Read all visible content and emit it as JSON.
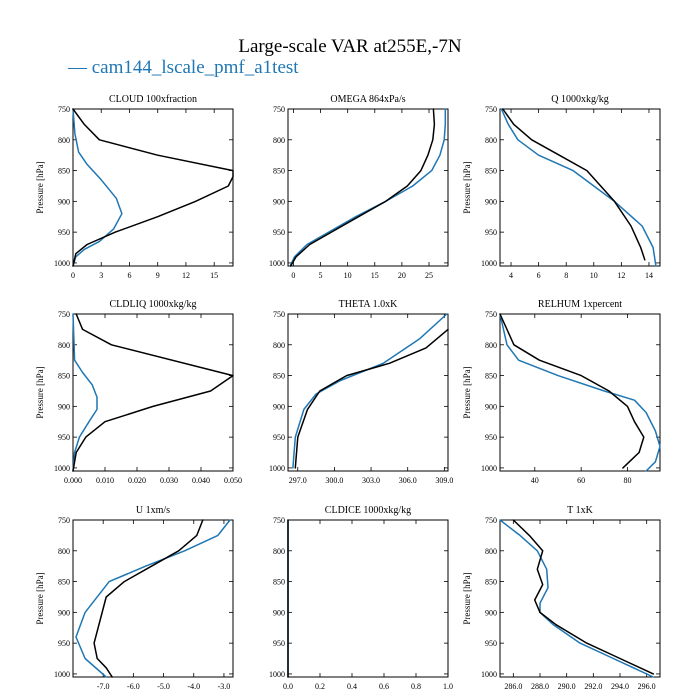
{
  "title": "Large-scale VAR at255E,-7N",
  "legend": [
    {
      "label": "cam144_lscale_pmf_a1test",
      "color": "#1f77b4",
      "marker": "—"
    }
  ],
  "colors": {
    "blue": "#1f77b4",
    "black": "#000000"
  },
  "chart_data": [
    {
      "type": "line",
      "title": "CLOUD  100xfraction",
      "ylabel": "Pressure [hPa]",
      "xlim": [
        0,
        17
      ],
      "ylim": [
        1005,
        750
      ],
      "xticks": [
        0,
        3,
        6,
        9,
        12,
        15
      ],
      "xticklabels": [
        "0",
        "3",
        "6",
        "9",
        "12",
        "15"
      ],
      "yticks": [
        750,
        800,
        850,
        900,
        950,
        1000
      ],
      "yticklabels": [
        "750",
        "800",
        "850",
        "900",
        "950",
        "1000"
      ],
      "series": [
        {
          "color": "#000000",
          "x": [
            0,
            1.2,
            2.8,
            9.0,
            17.0,
            17.0,
            16.5,
            13.0,
            9.0,
            4.5,
            1.5,
            0.3,
            0
          ],
          "y": [
            750,
            775,
            800,
            825,
            850,
            860,
            875,
            900,
            925,
            950,
            970,
            985,
            1005
          ]
        },
        {
          "color": "#1f77b4",
          "x": [
            0,
            0.2,
            0.6,
            1.5,
            3.0,
            4.6,
            5.2,
            4.3,
            2.8,
            1.2,
            0.3,
            0
          ],
          "y": [
            750,
            790,
            820,
            840,
            865,
            895,
            920,
            945,
            965,
            978,
            990,
            1005
          ]
        }
      ]
    },
    {
      "type": "line",
      "title": "OMEGA  864xPa/s",
      "ylabel": "",
      "xlim": [
        -1,
        28.5
      ],
      "ylim": [
        1005,
        750
      ],
      "xticks": [
        0,
        5,
        10,
        15,
        20,
        25
      ],
      "xticklabels": [
        "0",
        "5",
        "10",
        "15",
        "20",
        "25"
      ],
      "yticks": [
        750,
        800,
        850,
        900,
        950,
        1000
      ],
      "yticklabels": [
        "750",
        "800",
        "850",
        "900",
        "950",
        "1000"
      ],
      "series": [
        {
          "color": "#000000",
          "x": [
            25.8,
            26.0,
            25.7,
            24.8,
            23.5,
            21.0,
            17.0,
            12.0,
            7.0,
            3.0,
            0.5,
            -0.5
          ],
          "y": [
            750,
            775,
            800,
            825,
            850,
            875,
            900,
            925,
            950,
            970,
            990,
            1005
          ]
        },
        {
          "color": "#1f77b4",
          "x": [
            28.0,
            28.0,
            27.8,
            27.0,
            25.5,
            22.0,
            17.0,
            11.5,
            6.5,
            2.5,
            0.2,
            -0.6
          ],
          "y": [
            750,
            775,
            800,
            825,
            850,
            875,
            900,
            925,
            950,
            970,
            990,
            1005
          ]
        }
      ]
    },
    {
      "type": "line",
      "title": "Q  1000xkg/kg",
      "ylabel": "Pressure [hPa]",
      "xlim": [
        3.2,
        14.8
      ],
      "ylim": [
        1005,
        750
      ],
      "xticks": [
        4,
        6,
        8,
        10,
        12,
        14
      ],
      "xticklabels": [
        "4",
        "6",
        "8",
        "10",
        "12",
        "14"
      ],
      "yticks": [
        750,
        800,
        850,
        900,
        950,
        1000
      ],
      "yticklabels": [
        "750",
        "800",
        "850",
        "900",
        "950",
        "1000"
      ],
      "series": [
        {
          "color": "#000000",
          "x": [
            3.4,
            4.2,
            5.5,
            7.5,
            9.5,
            11.5,
            12.7,
            13.4,
            13.7
          ],
          "y": [
            750,
            775,
            800,
            825,
            850,
            900,
            940,
            975,
            995
          ]
        },
        {
          "color": "#1f77b4",
          "x": [
            3.3,
            3.8,
            4.5,
            6.0,
            8.5,
            11.5,
            13.5,
            14.3,
            14.5
          ],
          "y": [
            750,
            775,
            800,
            825,
            850,
            900,
            940,
            975,
            1005
          ]
        }
      ]
    },
    {
      "type": "line",
      "title": "CLDLIQ  1000xkg/kg",
      "ylabel": "Pressure [hPa]",
      "xlim": [
        0,
        0.05
      ],
      "ylim": [
        1005,
        750
      ],
      "xticks": [
        0.0,
        0.01,
        0.02,
        0.03,
        0.04,
        0.05
      ],
      "xticklabels": [
        "0.000",
        "0.010",
        "0.020",
        "0.030",
        "0.040",
        "0.050"
      ],
      "yticks": [
        750,
        800,
        850,
        900,
        950,
        1000
      ],
      "yticklabels": [
        "750",
        "800",
        "850",
        "900",
        "950",
        "1000"
      ],
      "series": [
        {
          "color": "#000000",
          "x": [
            0.001,
            0.003,
            0.012,
            0.05,
            0.043,
            0.025,
            0.01,
            0.004,
            0.001,
            0
          ],
          "y": [
            750,
            775,
            800,
            850,
            875,
            900,
            925,
            950,
            975,
            1005
          ]
        },
        {
          "color": "#1f77b4",
          "x": [
            0,
            0.0005,
            0.003,
            0.006,
            0.0075,
            0.0075,
            0.005,
            0.002,
            0.0005,
            0
          ],
          "y": [
            750,
            825,
            845,
            865,
            885,
            905,
            925,
            950,
            975,
            1005
          ]
        }
      ]
    },
    {
      "type": "line",
      "title": "THETA  1.0xK",
      "ylabel": "",
      "xlim": [
        296.2,
        309.3
      ],
      "ylim": [
        1005,
        750
      ],
      "xticks": [
        297.0,
        300.0,
        303.0,
        306.0,
        309.0
      ],
      "xticklabels": [
        "297.0",
        "300.0",
        "303.0",
        "306.0",
        "309.0"
      ],
      "yticks": [
        750,
        800,
        850,
        900,
        950,
        1000
      ],
      "yticklabels": [
        "750",
        "800",
        "850",
        "900",
        "950",
        "1000"
      ],
      "series": [
        {
          "color": "#000000",
          "x": [
            309.3,
            307.5,
            304.5,
            301.0,
            298.8,
            297.8,
            297.0,
            296.8
          ],
          "y": [
            775,
            805,
            830,
            850,
            875,
            905,
            950,
            1000
          ]
        },
        {
          "color": "#1f77b4",
          "x": [
            309.2,
            307.0,
            304.0,
            300.5,
            298.5,
            297.5,
            296.8,
            296.6
          ],
          "y": [
            750,
            790,
            830,
            858,
            880,
            905,
            950,
            1000
          ]
        }
      ]
    },
    {
      "type": "line",
      "title": "RELHUM  1xpercent",
      "ylabel": "Pressure [hPa]",
      "xlim": [
        25,
        94
      ],
      "ylim": [
        1005,
        750
      ],
      "xticks": [
        40,
        60,
        80
      ],
      "xticklabels": [
        "40",
        "60",
        "80"
      ],
      "yticks": [
        750,
        800,
        850,
        900,
        950,
        1000
      ],
      "yticklabels": [
        "750",
        "800",
        "850",
        "900",
        "950",
        "1000"
      ],
      "series": [
        {
          "color": "#000000",
          "x": [
            25,
            31,
            42,
            60,
            72,
            80,
            83,
            87,
            85,
            78
          ],
          "y": [
            750,
            800,
            825,
            850,
            875,
            900,
            925,
            950,
            975,
            1000
          ]
        },
        {
          "color": "#1f77b4",
          "x": [
            25,
            28,
            33,
            50,
            70,
            83,
            88,
            92,
            94,
            92,
            88
          ],
          "y": [
            750,
            800,
            825,
            850,
            875,
            890,
            910,
            940,
            965,
            990,
            1005
          ]
        }
      ]
    },
    {
      "type": "line",
      "title": "U  1xm/s",
      "ylabel": "Pressure [hPa]",
      "xlim": [
        -8.0,
        -2.7
      ],
      "ylim": [
        1005,
        750
      ],
      "xticks": [
        -7.0,
        -6.0,
        -5.0,
        -4.0,
        -3.0
      ],
      "xticklabels": [
        "-7.0",
        "-6.0",
        "-5.0",
        "-4.0",
        "-3.0"
      ],
      "yticks": [
        750,
        800,
        850,
        900,
        950,
        1000
      ],
      "yticklabels": [
        "750",
        "800",
        "850",
        "900",
        "950",
        "1000"
      ],
      "series": [
        {
          "color": "#000000",
          "x": [
            -3.7,
            -3.9,
            -4.5,
            -5.4,
            -6.3,
            -6.9,
            -7.3,
            -7.2,
            -6.9,
            -6.7
          ],
          "y": [
            750,
            775,
            800,
            825,
            850,
            875,
            950,
            975,
            990,
            1005
          ]
        },
        {
          "color": "#1f77b4",
          "x": [
            -2.8,
            -3.2,
            -4.3,
            -5.6,
            -6.8,
            -7.6,
            -7.9,
            -7.6,
            -6.9
          ],
          "y": [
            750,
            775,
            800,
            825,
            850,
            900,
            940,
            975,
            1005
          ]
        }
      ]
    },
    {
      "type": "line",
      "title": "CLDICE  1000xkg/kg",
      "ylabel": "",
      "xlim": [
        0,
        1.0
      ],
      "ylim": [
        1005,
        750
      ],
      "xticks": [
        0.0,
        0.2,
        0.4,
        0.6,
        0.8,
        1.0
      ],
      "xticklabels": [
        "0.0",
        "0.2",
        "0.4",
        "0.6",
        "0.8",
        "1.0"
      ],
      "yticks": [
        750,
        800,
        850,
        900,
        950,
        1000
      ],
      "yticklabels": [
        "750",
        "800",
        "850",
        "900",
        "950",
        "1000"
      ],
      "series": [
        {
          "color": "#000000",
          "x": [
            0,
            0
          ],
          "y": [
            750,
            1005
          ]
        },
        {
          "color": "#1f77b4",
          "x": [
            0,
            0
          ],
          "y": [
            750,
            1005
          ]
        }
      ]
    },
    {
      "type": "line",
      "title": "T  1xK",
      "ylabel": "Pressure [hPa]",
      "xlim": [
        285.0,
        297.0
      ],
      "ylim": [
        1005,
        750
      ],
      "xticks": [
        286.0,
        288.0,
        290.0,
        292.0,
        294.0,
        296.0
      ],
      "xticklabels": [
        "286.0",
        "288.0",
        "290.0",
        "292.0",
        "294.0",
        "296.0"
      ],
      "yticks": [
        750,
        800,
        850,
        900,
        950,
        1000
      ],
      "yticklabels": [
        "750",
        "800",
        "850",
        "900",
        "950",
        "1000"
      ],
      "series": [
        {
          "color": "#000000",
          "x": [
            286.0,
            287.2,
            288.2,
            287.8,
            288.2,
            287.6,
            288.0,
            289.2,
            291.5,
            294.0,
            296.5
          ],
          "y": [
            750,
            775,
            800,
            830,
            855,
            880,
            900,
            920,
            950,
            975,
            1000
          ]
        },
        {
          "color": "#1f77b4",
          "x": [
            285.0,
            286.5,
            287.8,
            288.5,
            288.6,
            288.0,
            288.0,
            289.0,
            291.0,
            293.5,
            296.5
          ],
          "y": [
            750,
            775,
            800,
            830,
            860,
            885,
            900,
            920,
            950,
            975,
            1005
          ]
        }
      ]
    }
  ]
}
